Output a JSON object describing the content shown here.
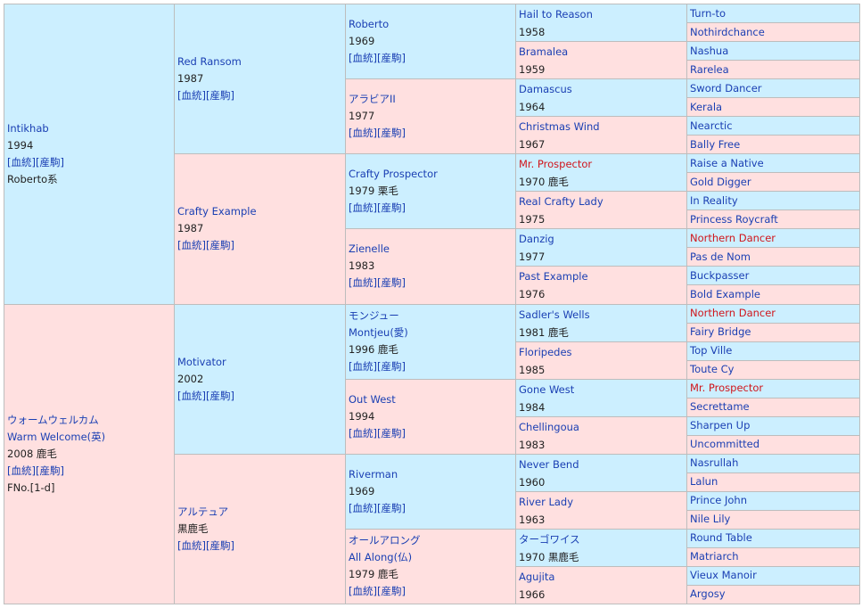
{
  "sire": {
    "name": "Intikhab",
    "year": "1994",
    "link1": "[血統]",
    "link2": "[産駒]",
    "line": "Roberto系",
    "sire": {
      "name": "Red Ransom",
      "year": "1987",
      "link1": "[血統]",
      "link2": "[産駒]",
      "sire": {
        "name": "Roberto",
        "year": "1969",
        "link1": "[血統]",
        "link2": "[産駒]",
        "sire": {
          "name": "Hail to Reason",
          "year": "1958",
          "sire": "Turn-to",
          "dam": "Nothirdchance"
        },
        "dam": {
          "name": "Bramalea",
          "year": "1959",
          "sire": "Nashua",
          "dam": "Rarelea"
        }
      },
      "dam": {
        "name": "アラビアII",
        "year": "1977",
        "link1": "[血統]",
        "link2": "[産駒]",
        "sire": {
          "name": "Damascus",
          "year": "1964",
          "sire": "Sword Dancer",
          "dam": "Kerala"
        },
        "dam": {
          "name": "Christmas Wind",
          "year": "1967",
          "sire": "Nearctic",
          "dam": "Bally Free"
        }
      }
    },
    "dam": {
      "name": "Crafty Example",
      "year": "1987",
      "link1": "[血統]",
      "link2": "[産駒]",
      "sire": {
        "name": "Crafty Prospector",
        "year": "1979 栗毛",
        "link1": "[血統]",
        "link2": "[産駒]",
        "sire": {
          "name": "Mr. Prospector",
          "year": "1970 鹿毛",
          "sire": "Raise a Native",
          "dam": "Gold Digger"
        },
        "dam": {
          "name": "Real Crafty Lady",
          "year": "1975",
          "sire": "In Reality",
          "dam": "Princess Roycraft"
        }
      },
      "dam": {
        "name": "Zienelle",
        "year": "1983",
        "link1": "[血統]",
        "link2": "[産駒]",
        "sire": {
          "name": "Danzig",
          "year": "1977",
          "sire": "Northern Dancer",
          "dam": "Pas de Nom"
        },
        "dam": {
          "name": "Past Example",
          "year": "1976",
          "sire": "Buckpasser",
          "dam": "Bold Example"
        }
      }
    }
  },
  "dam": {
    "name": "ウォームウェルカム",
    "name_en": "Warm Welcome(英)",
    "year": "2008 鹿毛",
    "link1": "[血統]",
    "link2": "[産駒]",
    "family": "FNo.[1-d]",
    "sire": {
      "name": "Motivator",
      "year": "2002",
      "link1": "[血統]",
      "link2": "[産駒]",
      "sire": {
        "name": "モンジュー",
        "name_en": "Montjeu(愛)",
        "year": "1996 鹿毛",
        "link1": "[血統]",
        "link2": "[産駒]",
        "sire": {
          "name": "Sadler's Wells",
          "year": "1981 鹿毛",
          "sire": "Northern Dancer",
          "dam": "Fairy Bridge"
        },
        "dam": {
          "name": "Floripedes",
          "year": "1985",
          "sire": "Top Ville",
          "dam": "Toute Cy"
        }
      },
      "dam": {
        "name": "Out West",
        "year": "1994",
        "link1": "[血統]",
        "link2": "[産駒]",
        "sire": {
          "name": "Gone West",
          "year": "1984",
          "sire": "Mr. Prospector",
          "dam": "Secrettame"
        },
        "dam": {
          "name": "Chellingoua",
          "year": "1983",
          "sire": "Sharpen Up",
          "dam": "Uncommitted"
        }
      }
    },
    "dam": {
      "name": "アルテュア",
      "year": "黒鹿毛",
      "link1": "[血統]",
      "link2": "[産駒]",
      "sire": {
        "name": "Riverman",
        "year": "1969",
        "link1": "[血統]",
        "link2": "[産駒]",
        "sire": {
          "name": "Never Bend",
          "year": "1960",
          "sire": "Nasrullah",
          "dam": "Lalun"
        },
        "dam": {
          "name": "River Lady",
          "year": "1963",
          "sire": "Prince John",
          "dam": "Nile Lily"
        }
      },
      "dam": {
        "name": "オールアロング",
        "name_en": "All Along(仏)",
        "year": "1979 鹿毛",
        "link1": "[血統]",
        "link2": "[産駒]",
        "sire": {
          "name": "ターゴワイス",
          "year": "1970 黒鹿毛",
          "sire": "Round Table",
          "dam": "Matriarch"
        },
        "dam": {
          "name": "Agujita",
          "year": "1966",
          "sire": "Vieux Manoir",
          "dam": "Argosy"
        }
      }
    }
  }
}
